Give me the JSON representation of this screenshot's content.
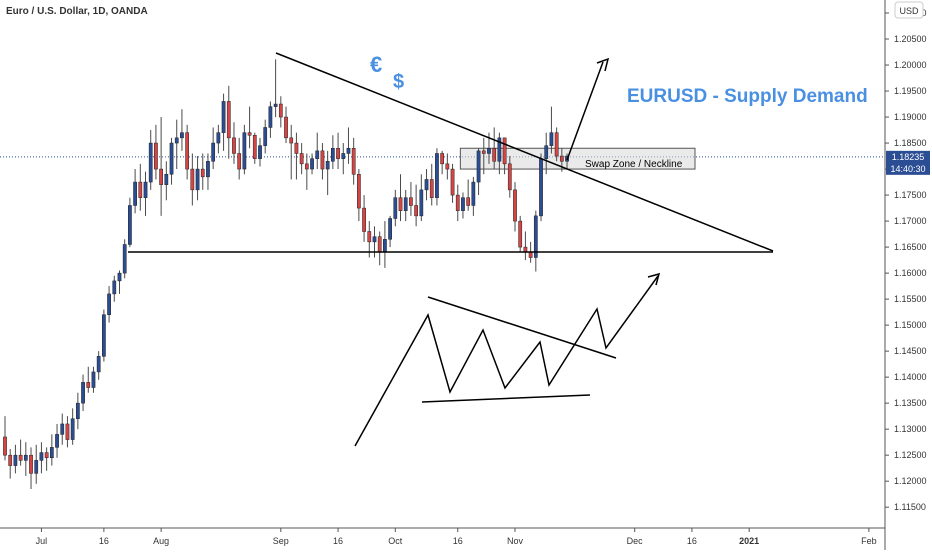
{
  "header": {
    "symbol_info": "Euro / U.S. Dollar, 1D, OANDA",
    "currency_button": "USD"
  },
  "annotations": {
    "title": "EURUSD - Supply Demand",
    "euro_sign": "€",
    "dollar_sign": "$",
    "swap_zone_label": "Swap Zone / Neckline"
  },
  "price_tag": {
    "price": "1.18235",
    "countdown": "14:40:30"
  },
  "colors": {
    "bull": "#2a4d94",
    "bear": "#d64545",
    "wick": "#4a4a4a",
    "accent_text": "#4a90e2",
    "price_line": "#2a4d94",
    "swap_zone_fill": "#d8d8d8"
  },
  "chart_data": {
    "type": "candlestick",
    "instrument": "EURUSD",
    "timeframe": "1D",
    "ylim": [
      1.111,
      1.2125
    ],
    "y_ticks": [
      "1.11500",
      "1.12000",
      "1.12500",
      "1.13000",
      "1.13500",
      "1.14000",
      "1.14500",
      "1.15000",
      "1.15500",
      "1.16000",
      "1.16500",
      "1.17000",
      "1.17500",
      "1.18000",
      "1.18500",
      "1.19000",
      "1.19500",
      "1.20000",
      "1.20500",
      "1.21000"
    ],
    "x_ticks": [
      {
        "label": "Jul",
        "index": 7
      },
      {
        "label": "16",
        "index": 19
      },
      {
        "label": "Aug",
        "index": 30
      },
      {
        "label": "Sep",
        "index": 53
      },
      {
        "label": "16",
        "index": 64
      },
      {
        "label": "Oct",
        "index": 75
      },
      {
        "label": "16",
        "index": 87
      },
      {
        "label": "Nov",
        "index": 98
      },
      {
        "label": "Dec",
        "index": 121
      },
      {
        "label": "16",
        "index": 132
      },
      {
        "label": "2021",
        "index": 143
      },
      {
        "label": "Feb",
        "index": 166
      }
    ],
    "x_range": [
      0,
      175
    ],
    "candles": [
      {
        "o": 1.1285,
        "h": 1.1325,
        "l": 1.124,
        "c": 1.125
      },
      {
        "o": 1.125,
        "h": 1.1262,
        "l": 1.1205,
        "c": 1.123
      },
      {
        "o": 1.123,
        "h": 1.127,
        "l": 1.1215,
        "c": 1.125
      },
      {
        "o": 1.125,
        "h": 1.128,
        "l": 1.123,
        "c": 1.124
      },
      {
        "o": 1.124,
        "h": 1.1275,
        "l": 1.121,
        "c": 1.125
      },
      {
        "o": 1.125,
        "h": 1.1265,
        "l": 1.1185,
        "c": 1.1215
      },
      {
        "o": 1.1215,
        "h": 1.127,
        "l": 1.1195,
        "c": 1.124
      },
      {
        "o": 1.124,
        "h": 1.1275,
        "l": 1.1215,
        "c": 1.1255
      },
      {
        "o": 1.1255,
        "h": 1.1265,
        "l": 1.122,
        "c": 1.1245
      },
      {
        "o": 1.1245,
        "h": 1.129,
        "l": 1.123,
        "c": 1.1265
      },
      {
        "o": 1.1265,
        "h": 1.131,
        "l": 1.1245,
        "c": 1.129
      },
      {
        "o": 1.129,
        "h": 1.133,
        "l": 1.127,
        "c": 1.131
      },
      {
        "o": 1.131,
        "h": 1.1325,
        "l": 1.1265,
        "c": 1.128
      },
      {
        "o": 1.128,
        "h": 1.134,
        "l": 1.127,
        "c": 1.132
      },
      {
        "o": 1.132,
        "h": 1.137,
        "l": 1.13,
        "c": 1.135
      },
      {
        "o": 1.135,
        "h": 1.1405,
        "l": 1.1335,
        "c": 1.139
      },
      {
        "o": 1.139,
        "h": 1.142,
        "l": 1.137,
        "c": 1.138
      },
      {
        "o": 1.138,
        "h": 1.142,
        "l": 1.137,
        "c": 1.141
      },
      {
        "o": 1.141,
        "h": 1.145,
        "l": 1.1395,
        "c": 1.144
      },
      {
        "o": 1.144,
        "h": 1.153,
        "l": 1.143,
        "c": 1.152
      },
      {
        "o": 1.152,
        "h": 1.1575,
        "l": 1.1505,
        "c": 1.156
      },
      {
        "o": 1.156,
        "h": 1.1595,
        "l": 1.1545,
        "c": 1.1585
      },
      {
        "o": 1.1585,
        "h": 1.1605,
        "l": 1.156,
        "c": 1.16
      },
      {
        "o": 1.16,
        "h": 1.1665,
        "l": 1.159,
        "c": 1.1655
      },
      {
        "o": 1.1655,
        "h": 1.1745,
        "l": 1.165,
        "c": 1.173
      },
      {
        "o": 1.173,
        "h": 1.18,
        "l": 1.1715,
        "c": 1.1775
      },
      {
        "o": 1.1775,
        "h": 1.181,
        "l": 1.172,
        "c": 1.1745
      },
      {
        "o": 1.1745,
        "h": 1.1795,
        "l": 1.171,
        "c": 1.1775
      },
      {
        "o": 1.1775,
        "h": 1.1875,
        "l": 1.176,
        "c": 1.185
      },
      {
        "o": 1.185,
        "h": 1.1885,
        "l": 1.178,
        "c": 1.18
      },
      {
        "o": 1.18,
        "h": 1.19,
        "l": 1.171,
        "c": 1.177
      },
      {
        "o": 1.177,
        "h": 1.1815,
        "l": 1.174,
        "c": 1.179
      },
      {
        "o": 1.179,
        "h": 1.186,
        "l": 1.177,
        "c": 1.185
      },
      {
        "o": 1.185,
        "h": 1.1895,
        "l": 1.18,
        "c": 1.186
      },
      {
        "o": 1.186,
        "h": 1.1915,
        "l": 1.1835,
        "c": 1.187
      },
      {
        "o": 1.187,
        "h": 1.1885,
        "l": 1.178,
        "c": 1.18
      },
      {
        "o": 1.18,
        "h": 1.183,
        "l": 1.173,
        "c": 1.176
      },
      {
        "o": 1.176,
        "h": 1.1825,
        "l": 1.174,
        "c": 1.18
      },
      {
        "o": 1.18,
        "h": 1.183,
        "l": 1.176,
        "c": 1.1785
      },
      {
        "o": 1.1785,
        "h": 1.183,
        "l": 1.176,
        "c": 1.1815
      },
      {
        "o": 1.1815,
        "h": 1.188,
        "l": 1.18,
        "c": 1.185
      },
      {
        "o": 1.185,
        "h": 1.1885,
        "l": 1.183,
        "c": 1.187
      },
      {
        "o": 1.187,
        "h": 1.1945,
        "l": 1.1835,
        "c": 1.193
      },
      {
        "o": 1.193,
        "h": 1.196,
        "l": 1.182,
        "c": 1.186
      },
      {
        "o": 1.186,
        "h": 1.189,
        "l": 1.181,
        "c": 1.183
      },
      {
        "o": 1.183,
        "h": 1.186,
        "l": 1.178,
        "c": 1.18
      },
      {
        "o": 1.18,
        "h": 1.1885,
        "l": 1.179,
        "c": 1.187
      },
      {
        "o": 1.187,
        "h": 1.192,
        "l": 1.184,
        "c": 1.1865
      },
      {
        "o": 1.1865,
        "h": 1.187,
        "l": 1.181,
        "c": 1.182
      },
      {
        "o": 1.182,
        "h": 1.186,
        "l": 1.1805,
        "c": 1.1845
      },
      {
        "o": 1.1845,
        "h": 1.1895,
        "l": 1.183,
        "c": 1.188
      },
      {
        "o": 1.188,
        "h": 1.193,
        "l": 1.186,
        "c": 1.192
      },
      {
        "o": 1.192,
        "h": 1.2011,
        "l": 1.19,
        "c": 1.1925
      },
      {
        "o": 1.1925,
        "h": 1.194,
        "l": 1.188,
        "c": 1.19
      },
      {
        "o": 1.19,
        "h": 1.192,
        "l": 1.185,
        "c": 1.186
      },
      {
        "o": 1.186,
        "h": 1.1885,
        "l": 1.178,
        "c": 1.185
      },
      {
        "o": 1.185,
        "h": 1.187,
        "l": 1.178,
        "c": 1.183
      },
      {
        "o": 1.183,
        "h": 1.185,
        "l": 1.179,
        "c": 1.181
      },
      {
        "o": 1.181,
        "h": 1.183,
        "l": 1.176,
        "c": 1.18
      },
      {
        "o": 1.18,
        "h": 1.183,
        "l": 1.179,
        "c": 1.182
      },
      {
        "o": 1.182,
        "h": 1.187,
        "l": 1.18,
        "c": 1.1835
      },
      {
        "o": 1.1835,
        "h": 1.185,
        "l": 1.178,
        "c": 1.18
      },
      {
        "o": 1.18,
        "h": 1.1835,
        "l": 1.175,
        "c": 1.1815
      },
      {
        "o": 1.1815,
        "h": 1.1865,
        "l": 1.18,
        "c": 1.184
      },
      {
        "o": 1.184,
        "h": 1.187,
        "l": 1.18,
        "c": 1.182
      },
      {
        "o": 1.182,
        "h": 1.185,
        "l": 1.179,
        "c": 1.183
      },
      {
        "o": 1.183,
        "h": 1.188,
        "l": 1.181,
        "c": 1.184
      },
      {
        "o": 1.184,
        "h": 1.186,
        "l": 1.177,
        "c": 1.179
      },
      {
        "o": 1.179,
        "h": 1.18,
        "l": 1.17,
        "c": 1.1725
      },
      {
        "o": 1.1725,
        "h": 1.175,
        "l": 1.166,
        "c": 1.168
      },
      {
        "o": 1.168,
        "h": 1.17,
        "l": 1.163,
        "c": 1.166
      },
      {
        "o": 1.166,
        "h": 1.169,
        "l": 1.163,
        "c": 1.167
      },
      {
        "o": 1.167,
        "h": 1.168,
        "l": 1.1615,
        "c": 1.164
      },
      {
        "o": 1.164,
        "h": 1.17,
        "l": 1.161,
        "c": 1.1665
      },
      {
        "o": 1.1665,
        "h": 1.171,
        "l": 1.165,
        "c": 1.1705
      },
      {
        "o": 1.1705,
        "h": 1.176,
        "l": 1.169,
        "c": 1.1745
      },
      {
        "o": 1.1745,
        "h": 1.179,
        "l": 1.17,
        "c": 1.172
      },
      {
        "o": 1.172,
        "h": 1.176,
        "l": 1.17,
        "c": 1.1745
      },
      {
        "o": 1.1745,
        "h": 1.1775,
        "l": 1.171,
        "c": 1.173
      },
      {
        "o": 1.173,
        "h": 1.177,
        "l": 1.169,
        "c": 1.171
      },
      {
        "o": 1.171,
        "h": 1.179,
        "l": 1.17,
        "c": 1.176
      },
      {
        "o": 1.176,
        "h": 1.18,
        "l": 1.174,
        "c": 1.178
      },
      {
        "o": 1.178,
        "h": 1.181,
        "l": 1.173,
        "c": 1.1745
      },
      {
        "o": 1.1745,
        "h": 1.184,
        "l": 1.173,
        "c": 1.183
      },
      {
        "o": 1.183,
        "h": 1.1835,
        "l": 1.179,
        "c": 1.181
      },
      {
        "o": 1.181,
        "h": 1.183,
        "l": 1.178,
        "c": 1.18
      },
      {
        "o": 1.18,
        "h": 1.181,
        "l": 1.1735,
        "c": 1.175
      },
      {
        "o": 1.175,
        "h": 1.177,
        "l": 1.17,
        "c": 1.172
      },
      {
        "o": 1.172,
        "h": 1.1755,
        "l": 1.1705,
        "c": 1.1745
      },
      {
        "o": 1.1745,
        "h": 1.178,
        "l": 1.172,
        "c": 1.173
      },
      {
        "o": 1.173,
        "h": 1.1785,
        "l": 1.171,
        "c": 1.1775
      },
      {
        "o": 1.1775,
        "h": 1.184,
        "l": 1.175,
        "c": 1.1835
      },
      {
        "o": 1.1835,
        "h": 1.186,
        "l": 1.179,
        "c": 1.183
      },
      {
        "o": 1.183,
        "h": 1.187,
        "l": 1.181,
        "c": 1.184
      },
      {
        "o": 1.184,
        "h": 1.188,
        "l": 1.18,
        "c": 1.1815
      },
      {
        "o": 1.1815,
        "h": 1.187,
        "l": 1.179,
        "c": 1.186
      },
      {
        "o": 1.186,
        "h": 1.186,
        "l": 1.179,
        "c": 1.181
      },
      {
        "o": 1.181,
        "h": 1.1825,
        "l": 1.1745,
        "c": 1.176
      },
      {
        "o": 1.176,
        "h": 1.1775,
        "l": 1.168,
        "c": 1.17
      },
      {
        "o": 1.17,
        "h": 1.171,
        "l": 1.164,
        "c": 1.165
      },
      {
        "o": 1.165,
        "h": 1.168,
        "l": 1.1625,
        "c": 1.164
      },
      {
        "o": 1.164,
        "h": 1.166,
        "l": 1.162,
        "c": 1.163
      },
      {
        "o": 1.163,
        "h": 1.172,
        "l": 1.1603,
        "c": 1.171
      },
      {
        "o": 1.171,
        "h": 1.183,
        "l": 1.17,
        "c": 1.182
      },
      {
        "o": 1.182,
        "h": 1.187,
        "l": 1.179,
        "c": 1.1845
      },
      {
        "o": 1.1845,
        "h": 1.192,
        "l": 1.183,
        "c": 1.187
      },
      {
        "o": 1.187,
        "h": 1.188,
        "l": 1.1815,
        "c": 1.1825
      },
      {
        "o": 1.1825,
        "h": 1.184,
        "l": 1.1795,
        "c": 1.1815
      },
      {
        "o": 1.1815,
        "h": 1.183,
        "l": 1.18,
        "c": 1.1825
      }
    ]
  }
}
